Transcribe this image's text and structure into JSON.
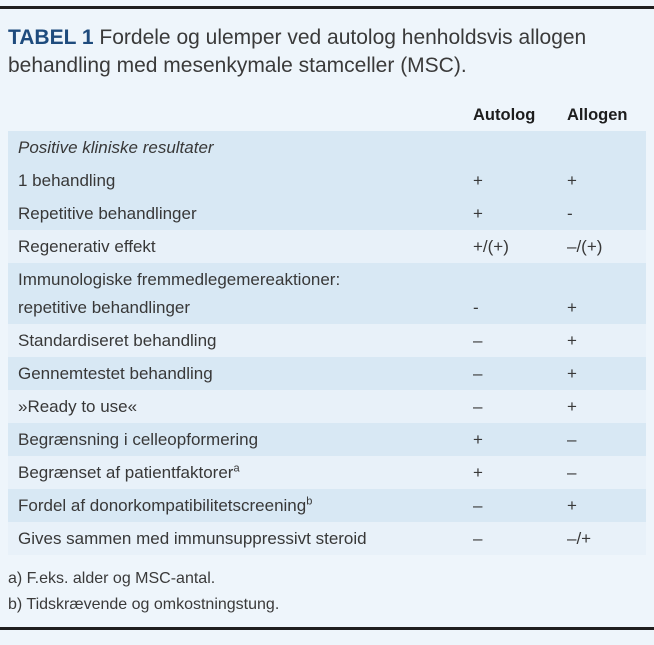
{
  "title": {
    "label": "TABEL 1",
    "caption": " Fordele og ulemper ved autolog henholdsvis allogen behandling med mesenkymale stamceller (MSC)."
  },
  "columns": [
    "Autolog",
    "Allogen"
  ],
  "rows": [
    {
      "label": "Positive kliniske resultater",
      "autolog": "",
      "allogen": "",
      "section_header": true,
      "shaded": true
    },
    {
      "label": "1 behandling",
      "autolog": "+",
      "allogen": "+",
      "shaded": true
    },
    {
      "label": "Repetitive behandlinger",
      "autolog": "+",
      "allogen": "-",
      "shaded": true
    },
    {
      "label": "Regenerativ effekt",
      "autolog": "+/(+)",
      "allogen": "–/(+)",
      "shaded": false
    },
    {
      "label": "Immunologiske fremmedlegemereaktioner:",
      "label2": "repetitive behandlinger",
      "autolog": "-",
      "allogen": "+",
      "shaded": true
    },
    {
      "label": "Standardiseret behandling",
      "autolog": "–",
      "allogen": "+",
      "shaded": false
    },
    {
      "label": "Gennemtestet behandling",
      "autolog": "–",
      "allogen": "+",
      "shaded": true
    },
    {
      "label": "»Ready to use«",
      "autolog": "–",
      "allogen": "+",
      "shaded": false
    },
    {
      "label": "Begrænsning i celleopformering",
      "autolog": "+",
      "allogen": "–",
      "shaded": true
    },
    {
      "label": "Begrænset af patientfaktorer",
      "sup": "a",
      "autolog": "+",
      "allogen": "–",
      "shaded": false
    },
    {
      "label": "Fordel af donorkompatibilitetscreening",
      "sup": "b",
      "autolog": "–",
      "allogen": "+",
      "shaded": true
    },
    {
      "label": "Gives sammen med immunsuppressivt steroid",
      "autolog": "–",
      "allogen": "–/+",
      "shaded": false
    }
  ],
  "footnotes": [
    "a) F.eks. alder og MSC-antal.",
    "b) Tidskrævende og omkostningstung."
  ],
  "colors": {
    "accent_blue": "#1e4b7d",
    "shaded_row": "#d8e8f4",
    "light_row": "#e8f1f9",
    "background": "#eef5fb",
    "rule": "#1f1f1f",
    "text": "#3a3a3a"
  }
}
